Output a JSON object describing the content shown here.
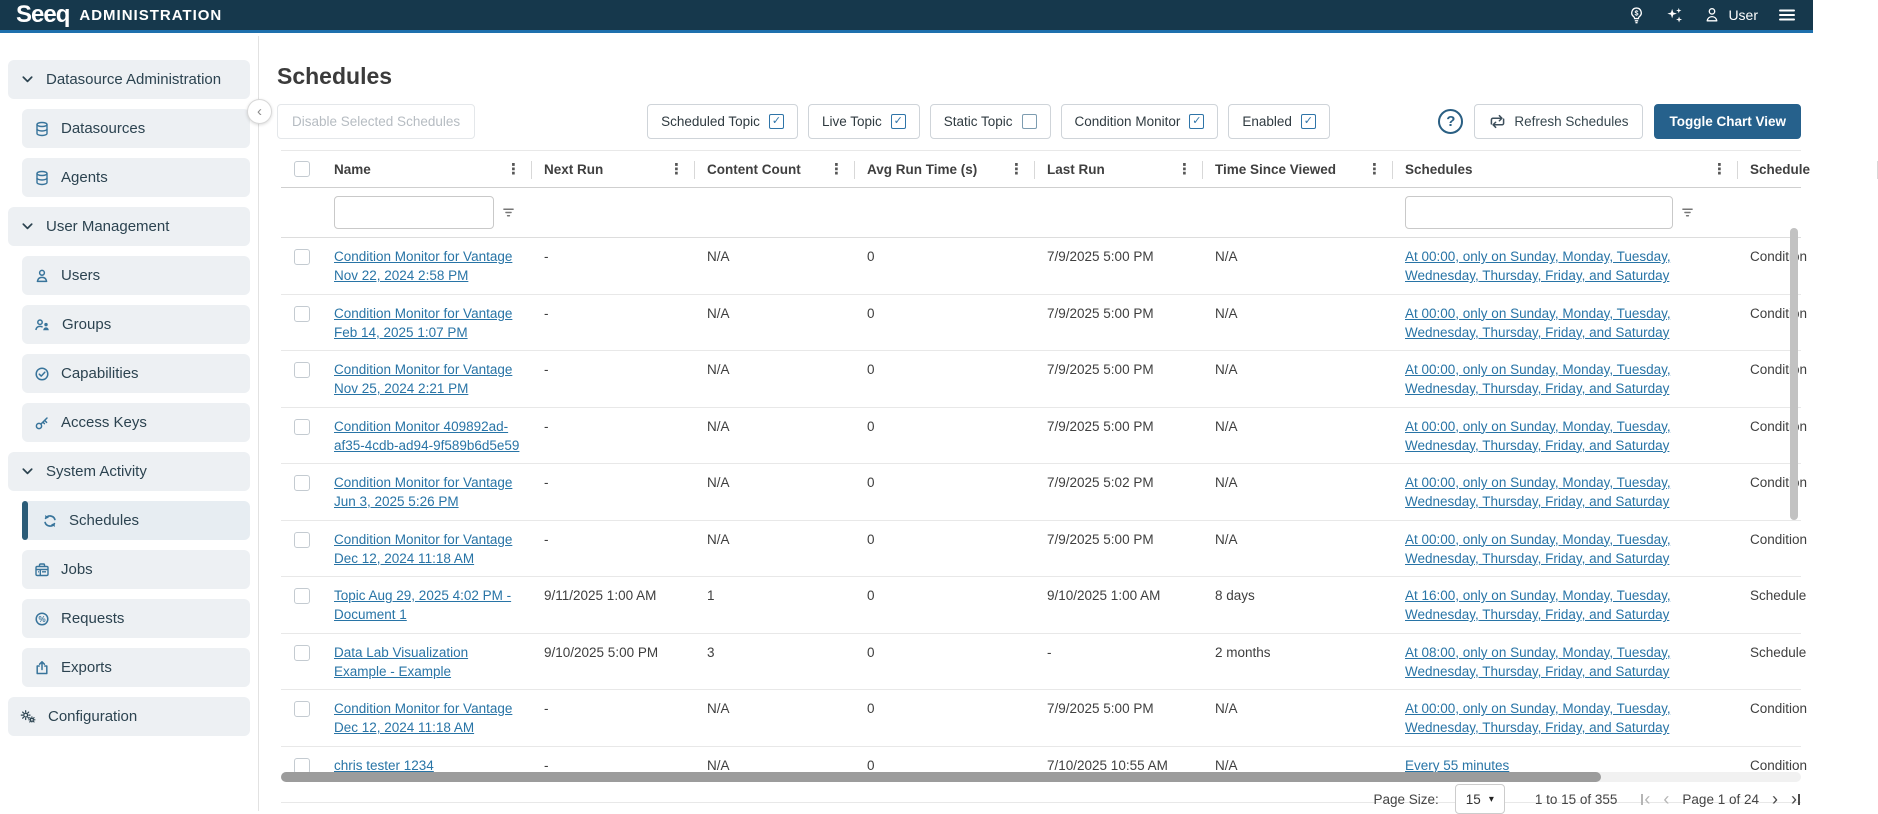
{
  "topbar": {
    "brand": "Seeq",
    "title": "ADMINISTRATION",
    "user_label": "User",
    "icons": [
      "lightbulb-dollar-icon",
      "sparkles-icon",
      "user-icon",
      "hamburger-menu-icon"
    ]
  },
  "sidebar": {
    "collapse_icon": "chevron-left-icon",
    "items": [
      {
        "label": "Datasource Administration",
        "type": "section",
        "icon": "chevron-down-icon"
      },
      {
        "label": "Datasources",
        "type": "item",
        "icon": "database-icon"
      },
      {
        "label": "Agents",
        "type": "item",
        "icon": "database-icon"
      },
      {
        "label": "User Management",
        "type": "section",
        "icon": "chevron-down-icon"
      },
      {
        "label": "Users",
        "type": "item",
        "icon": "user-icon"
      },
      {
        "label": "Groups",
        "type": "item",
        "icon": "users-icon"
      },
      {
        "label": "Capabilities",
        "type": "item",
        "icon": "check-circle-icon"
      },
      {
        "label": "Access Keys",
        "type": "item",
        "icon": "key-icon"
      },
      {
        "label": "System Activity",
        "type": "section",
        "icon": "chevron-down-icon"
      },
      {
        "label": "Schedules",
        "type": "item",
        "icon": "refresh-icon",
        "active": true
      },
      {
        "label": "Jobs",
        "type": "item",
        "icon": "briefcase-icon"
      },
      {
        "label": "Requests",
        "type": "item",
        "icon": "percent-circle-icon"
      },
      {
        "label": "Exports",
        "type": "item",
        "icon": "export-icon"
      },
      {
        "label": "Configuration",
        "type": "root",
        "icon": "gears-icon"
      }
    ]
  },
  "page": {
    "title": "Schedules"
  },
  "toolbar": {
    "disable_button": "Disable Selected Schedules",
    "filters": [
      {
        "label": "Scheduled Topic",
        "checked": true
      },
      {
        "label": "Live Topic",
        "checked": true
      },
      {
        "label": "Static Topic",
        "checked": false
      },
      {
        "label": "Condition Monitor",
        "checked": true
      },
      {
        "label": "Enabled",
        "checked": true
      }
    ],
    "help_icon": "help-circle-icon",
    "refresh_icon": "refresh-loop-icon",
    "refresh_button": "Refresh Schedules",
    "toggle_chart_button": "Toggle Chart View"
  },
  "table": {
    "select_all_checked": false,
    "columns": [
      "Name",
      "Next Run",
      "Content Count",
      "Avg Run Time (s)",
      "Last Run",
      "Time Since Viewed",
      "Schedules",
      "Schedule"
    ],
    "rows": [
      {
        "checked": false,
        "name": "Condition Monitor for Vantage Nov 22, 2024 2:58 PM",
        "next_run": "-",
        "content_count": "N/A",
        "avg_run_time": "0",
        "last_run": "7/9/2025 5:00 PM",
        "time_since_viewed": "N/A",
        "schedule": "At 00:00, only on Sunday, Monday, Tuesday, Wednesday, Thursday, Friday, and Saturday",
        "type": "Condition"
      },
      {
        "checked": false,
        "name": "Condition Monitor for Vantage Feb 14, 2025 1:07 PM",
        "next_run": "-",
        "content_count": "N/A",
        "avg_run_time": "0",
        "last_run": "7/9/2025 5:00 PM",
        "time_since_viewed": "N/A",
        "schedule": "At 00:00, only on Sunday, Monday, Tuesday, Wednesday, Thursday, Friday, and Saturday",
        "type": "Condition"
      },
      {
        "checked": false,
        "name": "Condition Monitor for Vantage Nov 25, 2024 2:21 PM",
        "next_run": "-",
        "content_count": "N/A",
        "avg_run_time": "0",
        "last_run": "7/9/2025 5:00 PM",
        "time_since_viewed": "N/A",
        "schedule": "At 00:00, only on Sunday, Monday, Tuesday, Wednesday, Thursday, Friday, and Saturday",
        "type": "Condition"
      },
      {
        "checked": false,
        "name": "Condition Monitor 409892ad-af35-4cdb-ad94-9f589b6d5e59",
        "next_run": "-",
        "content_count": "N/A",
        "avg_run_time": "0",
        "last_run": "7/9/2025 5:00 PM",
        "time_since_viewed": "N/A",
        "schedule": "At 00:00, only on Sunday, Monday, Tuesday, Wednesday, Thursday, Friday, and Saturday",
        "type": "Condition"
      },
      {
        "checked": false,
        "name": "Condition Monitor for Vantage Jun 3, 2025 5:26 PM",
        "next_run": "-",
        "content_count": "N/A",
        "avg_run_time": "0",
        "last_run": "7/9/2025 5:02 PM",
        "time_since_viewed": "N/A",
        "schedule": "At 00:00, only on Sunday, Monday, Tuesday, Wednesday, Thursday, Friday, and Saturday",
        "type": "Condition"
      },
      {
        "checked": false,
        "name": "Condition Monitor for Vantage Dec 12, 2024 11:18 AM",
        "next_run": "-",
        "content_count": "N/A",
        "avg_run_time": "0",
        "last_run": "7/9/2025 5:00 PM",
        "time_since_viewed": "N/A",
        "schedule": "At 00:00, only on Sunday, Monday, Tuesday, Wednesday, Thursday, Friday, and Saturday",
        "type": "Condition"
      },
      {
        "checked": false,
        "name": "Topic Aug 29, 2025 4:02 PM - Document 1",
        "next_run": "9/11/2025 1:00 AM",
        "content_count": "1",
        "avg_run_time": "0",
        "last_run": "9/10/2025 1:00 AM",
        "time_since_viewed": "8 days",
        "schedule": "At 16:00, only on Sunday, Monday, Tuesday, Wednesday, Thursday, Friday, and Saturday",
        "type": "Schedule"
      },
      {
        "checked": false,
        "name": "Data Lab Visualization Example - Example",
        "next_run": "9/10/2025 5:00 PM",
        "content_count": "3",
        "avg_run_time": "0",
        "last_run": "-",
        "time_since_viewed": "2 months",
        "schedule": "At 08:00, only on Sunday, Monday, Tuesday, Wednesday, Thursday, Friday, and Saturday",
        "type": "Schedule"
      },
      {
        "checked": false,
        "name": "Condition Monitor for Vantage Dec 12, 2024 11:18 AM",
        "next_run": "-",
        "content_count": "N/A",
        "avg_run_time": "0",
        "last_run": "7/9/2025 5:00 PM",
        "time_since_viewed": "N/A",
        "schedule": "At 00:00, only on Sunday, Monday, Tuesday, Wednesday, Thursday, Friday, and Saturday",
        "type": "Condition"
      },
      {
        "checked": false,
        "name": "chris tester 1234",
        "next_run": "-",
        "content_count": "N/A",
        "avg_run_time": "0",
        "last_run": "7/10/2025 10:55 AM",
        "time_since_viewed": "N/A",
        "schedule": "Every 55 minutes",
        "type": "Condition"
      }
    ]
  },
  "pagination": {
    "page_size_label": "Page Size:",
    "page_size": "15",
    "range_text": "1 to 15 of 355",
    "page_text": "Page 1 of 24",
    "icons": [
      "first-page-icon",
      "previous-page-icon",
      "next-page-icon",
      "last-page-icon"
    ]
  },
  "colors": {
    "topbar_bg": "#16384c",
    "topbar_accent": "#1e70ad",
    "primary_btn": "#26618c",
    "link": "#2874a6",
    "icon_blue": "#38749b",
    "active_accent": "#2b5c78",
    "chip_check": "#2e74a8",
    "sidebar_item_bg": "#edf0f3",
    "text": "#3e3e3e"
  }
}
